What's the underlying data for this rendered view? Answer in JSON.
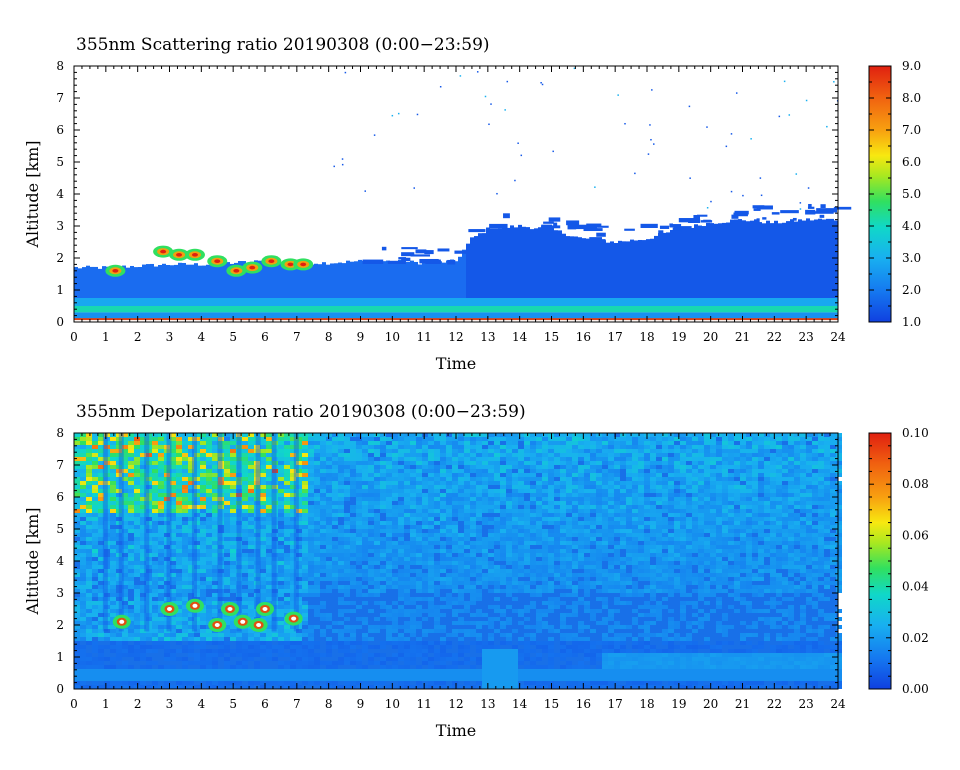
{
  "chart_data": [
    {
      "type": "heatmap",
      "title": "355nm Scattering ratio  20190308 (0:00−23:59)",
      "xlabel": "Time",
      "ylabel": "Altitude [km]",
      "xlim": [
        0,
        24
      ],
      "ylim": [
        0,
        8
      ],
      "x_ticks": [
        "0",
        "1",
        "2",
        "3",
        "4",
        "5",
        "6",
        "7",
        "8",
        "9",
        "10",
        "11",
        "12",
        "13",
        "14",
        "15",
        "16",
        "17",
        "18",
        "19",
        "20",
        "21",
        "22",
        "23",
        "24"
      ],
      "y_ticks": [
        "0",
        "1",
        "2",
        "3",
        "4",
        "5",
        "6",
        "7",
        "8"
      ],
      "colorbar": {
        "range": [
          1.0,
          9.0
        ],
        "tick_labels": [
          "1.0",
          "2.0",
          "3.0",
          "4.0",
          "5.0",
          "6.0",
          "7.0",
          "8.0",
          "9.0"
        ]
      },
      "features": {
        "boundary_layer_top_km": [
          [
            0,
            1.7
          ],
          [
            1,
            1.7
          ],
          [
            2,
            1.75
          ],
          [
            3,
            1.8
          ],
          [
            4,
            1.8
          ],
          [
            5,
            1.85
          ],
          [
            6,
            1.9
          ],
          [
            7,
            1.85
          ],
          [
            8,
            1.85
          ],
          [
            9,
            1.9
          ],
          [
            10,
            1.9
          ],
          [
            11,
            1.85
          ],
          [
            12,
            1.9
          ],
          [
            12.5,
            2.6
          ],
          [
            13,
            2.9
          ],
          [
            14,
            3.0
          ],
          [
            15,
            2.9
          ],
          [
            16,
            2.6
          ],
          [
            17,
            2.5
          ],
          [
            18,
            2.6
          ],
          [
            19,
            2.9
          ],
          [
            20,
            3.1
          ],
          [
            21,
            3.2
          ],
          [
            22,
            3.1
          ],
          [
            23,
            3.2
          ],
          [
            24,
            3.2
          ]
        ],
        "cloud_patches": [
          [
            1.3,
            1.6
          ],
          [
            2.8,
            2.2
          ],
          [
            3.3,
            2.1
          ],
          [
            3.8,
            2.1
          ],
          [
            4.5,
            1.9
          ],
          [
            5.1,
            1.6
          ],
          [
            5.6,
            1.7
          ],
          [
            6.2,
            1.9
          ],
          [
            6.8,
            1.8
          ],
          [
            7.2,
            1.8
          ]
        ]
      }
    },
    {
      "type": "heatmap",
      "title": "355nm Depolarization ratio  20190308 (0:00−23:59)",
      "xlabel": "Time",
      "ylabel": "Altitude [km]",
      "xlim": [
        0,
        24
      ],
      "ylim": [
        0,
        8
      ],
      "x_ticks": [
        "0",
        "1",
        "2",
        "3",
        "4",
        "5",
        "6",
        "7",
        "8",
        "9",
        "10",
        "11",
        "12",
        "13",
        "14",
        "15",
        "16",
        "17",
        "18",
        "19",
        "20",
        "21",
        "22",
        "23",
        "24"
      ],
      "y_ticks": [
        "0",
        "1",
        "2",
        "3",
        "4",
        "5",
        "6",
        "7",
        "8"
      ],
      "colorbar": {
        "range": [
          0.0,
          0.1
        ],
        "tick_labels": [
          "0.00",
          "0.02",
          "0.04",
          "0.06",
          "0.08",
          "0.10"
        ]
      },
      "features": {
        "high_depol_columns_hours": [
          1.0,
          1.5,
          2.3,
          3.0,
          3.8,
          4.6,
          5.2,
          5.8,
          6.3,
          7.0
        ],
        "cloud_patches": [
          [
            1.5,
            2.1
          ],
          [
            3.0,
            2.5
          ],
          [
            3.8,
            2.6
          ],
          [
            4.5,
            2.0
          ],
          [
            4.9,
            2.5
          ],
          [
            5.3,
            2.1
          ],
          [
            5.8,
            2.0
          ],
          [
            6.0,
            2.5
          ],
          [
            6.9,
            2.2
          ]
        ]
      }
    }
  ]
}
